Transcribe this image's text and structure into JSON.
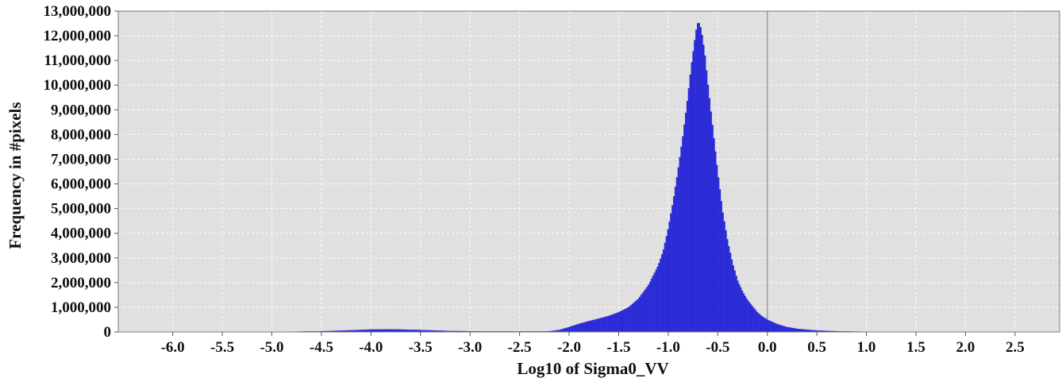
{
  "chart_data": {
    "type": "area",
    "title": "",
    "xlabel": "Log10 of Sigma0_VV",
    "ylabel": "Frequency in #pixels",
    "xlim": [
      -6.55,
      2.95
    ],
    "ylim": [
      0,
      13000000
    ],
    "x_ticks": [
      "-6.0",
      "-5.5",
      "-5.0",
      "-4.5",
      "-4.0",
      "-3.5",
      "-3.0",
      "-2.5",
      "-2.0",
      "-1.5",
      "-1.0",
      "-0.5",
      "0.0",
      "0.5",
      "1.0",
      "1.5",
      "2.0",
      "2.5"
    ],
    "y_ticks": [
      "0",
      "1,000,000",
      "2,000,000",
      "3,000,000",
      "4,000,000",
      "5,000,000",
      "6,000,000",
      "7,000,000",
      "8,000,000",
      "9,000,000",
      "10,000,000",
      "11,000,000",
      "12,000,000",
      "13,000,000"
    ],
    "grid": true,
    "reference_line_x": 0.0,
    "series": [
      {
        "color": "#2a2ad6",
        "x": [
          -6.5,
          -5.0,
          -4.5,
          -4.2,
          -4.0,
          -3.8,
          -3.5,
          -3.2,
          -3.0,
          -2.5,
          -2.2,
          -2.1,
          -2.0,
          -1.9,
          -1.8,
          -1.7,
          -1.6,
          -1.5,
          -1.4,
          -1.3,
          -1.2,
          -1.1,
          -1.05,
          -1.0,
          -0.95,
          -0.9,
          -0.85,
          -0.8,
          -0.77,
          -0.74,
          -0.72,
          -0.7,
          -0.68,
          -0.66,
          -0.63,
          -0.6,
          -0.55,
          -0.5,
          -0.45,
          -0.4,
          -0.35,
          -0.3,
          -0.25,
          -0.2,
          -0.15,
          -0.1,
          -0.05,
          0.0,
          0.1,
          0.2,
          0.3,
          0.5,
          0.7,
          1.0,
          1.5,
          2.0,
          2.5,
          2.9
        ],
        "y": [
          0,
          0,
          30000,
          70000,
          100000,
          110000,
          80000,
          40000,
          30000,
          20000,
          30000,
          80000,
          200000,
          330000,
          440000,
          540000,
          650000,
          800000,
          1000000,
          1350000,
          1900000,
          2700000,
          3300000,
          4200000,
          5300000,
          6600000,
          8000000,
          9600000,
          10700000,
          11600000,
          12200000,
          12550000,
          12500000,
          12100000,
          11300000,
          10100000,
          8300000,
          6500000,
          4900000,
          3700000,
          2800000,
          2100000,
          1650000,
          1300000,
          1050000,
          800000,
          630000,
          500000,
          320000,
          200000,
          130000,
          60000,
          30000,
          10000,
          5000,
          2000,
          0,
          0
        ]
      }
    ]
  }
}
